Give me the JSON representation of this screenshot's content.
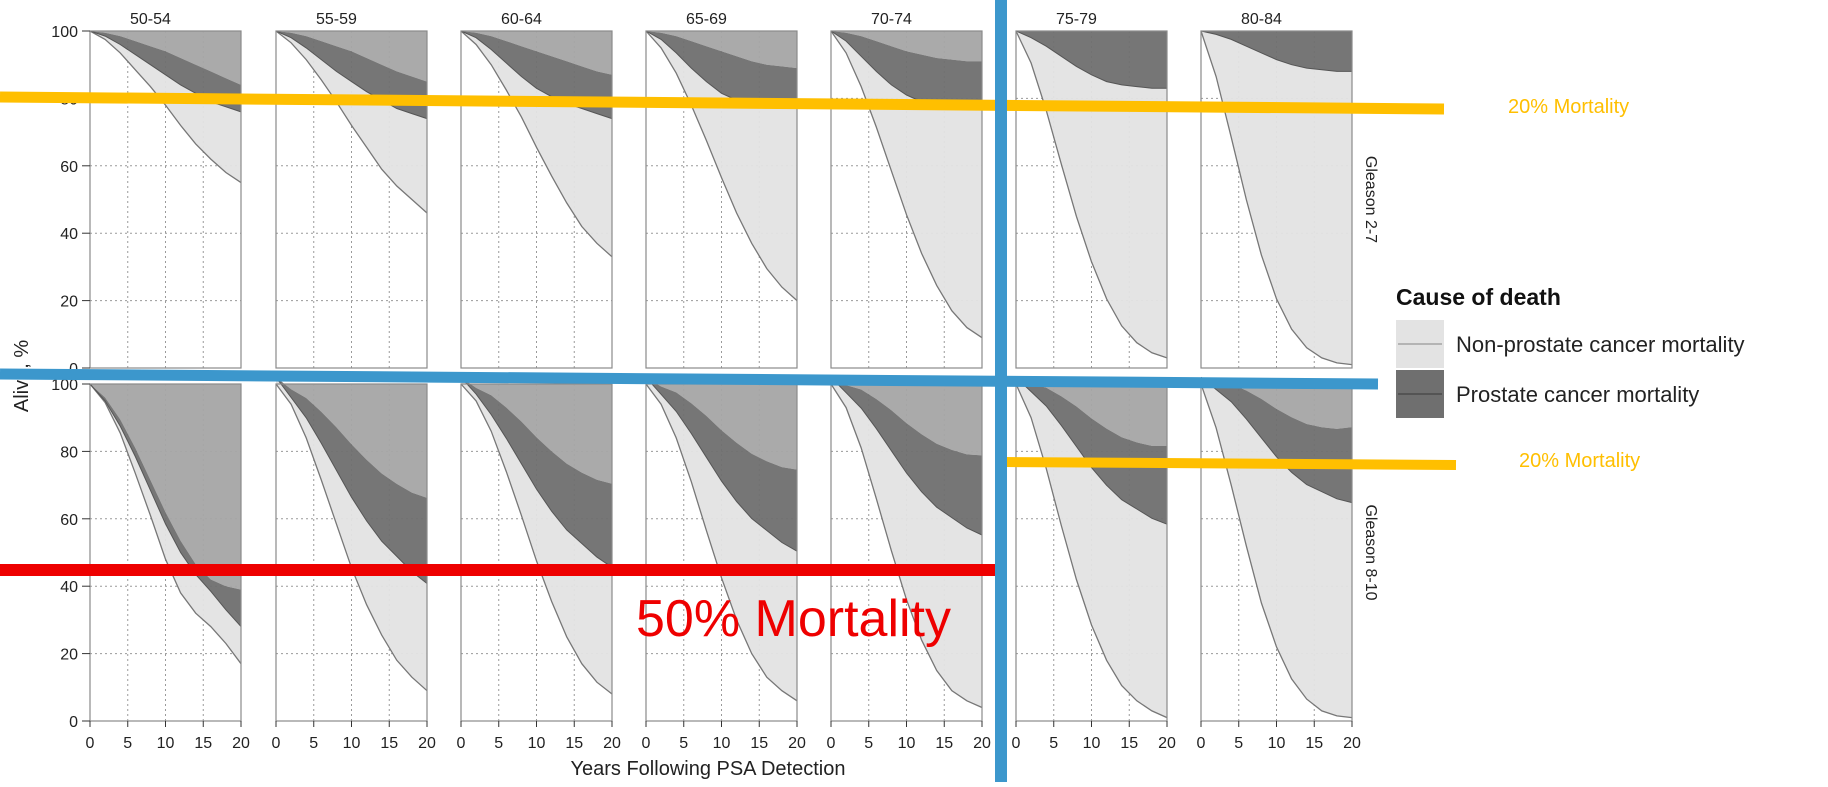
{
  "chart_data": {
    "type": "area",
    "xlabel": "Years Following PSA Detection",
    "ylabel": "Alive, %",
    "x": [
      0,
      2,
      4,
      6,
      8,
      10,
      12,
      14,
      16,
      18,
      20
    ],
    "xticks": [
      0,
      5,
      10,
      15,
      20
    ],
    "xlim": [
      0,
      20
    ],
    "ylim": [
      0,
      100
    ],
    "yticks": [
      0,
      20,
      40,
      60,
      80,
      100
    ],
    "grid": true,
    "stacked": true,
    "column_labels": [
      "50-54",
      "55-59",
      "60-64",
      "65-69",
      "70-74",
      "75-79",
      "80-84"
    ],
    "row_labels": [
      "Gleason 2-7",
      "Gleason 8-10"
    ],
    "colors": {
      "non_prostate": "#e3e3e3",
      "prostate": "#6f6f6f",
      "other": "#a5a5a5",
      "panel_border": "#8a8a8a",
      "highlight_blue": "#3c97cc",
      "highlight_yellow": "#ffbf00",
      "highlight_red": "#ee0000"
    },
    "legend": {
      "title": "Cause of death",
      "position": "right",
      "entries": [
        {
          "name": "Non-prostate cancer mortality",
          "key": "non_prostate"
        },
        {
          "name": "Prostate cancer mortality",
          "key": "prostate"
        }
      ]
    },
    "annotations": [
      {
        "text": "20% Mortality",
        "color": "#ffbf00"
      },
      {
        "text": "20% Mortality",
        "color": "#ffbf00"
      },
      {
        "text": "50% Mortality",
        "color": "#ee0000"
      }
    ],
    "panels": [
      {
        "row": "Gleason 2-7",
        "col": "50-54",
        "alive": [
          100,
          97.5,
          93.5,
          88.5,
          83.5,
          78,
          72,
          66.5,
          62,
          58,
          55
        ],
        "without_prostate_deaths": [
          100,
          98.5,
          96,
          93,
          90,
          87,
          84,
          81.5,
          79,
          77.5,
          76
        ],
        "without_any_cancer_deaths": [
          100,
          99.5,
          98.5,
          97,
          95.5,
          94,
          92,
          90,
          88,
          86,
          84
        ]
      },
      {
        "row": "Gleason 2-7",
        "col": "55-59",
        "alive": [
          100,
          96.5,
          91.5,
          85.5,
          79,
          72,
          65.5,
          59,
          54,
          50,
          46
        ],
        "without_prostate_deaths": [
          100,
          98,
          95,
          91.5,
          88,
          85,
          82,
          79.5,
          77,
          75.5,
          74
        ],
        "without_any_cancer_deaths": [
          100,
          99.5,
          98.5,
          97,
          95.5,
          94,
          92,
          90,
          88,
          86.5,
          85
        ]
      },
      {
        "row": "Gleason 2-7",
        "col": "60-64",
        "alive": [
          100,
          96,
          90,
          82.5,
          74.5,
          65.5,
          57,
          49,
          42,
          37,
          33
        ],
        "without_prostate_deaths": [
          100,
          98,
          94.5,
          90.5,
          86.5,
          83,
          80.5,
          78.5,
          77,
          75.5,
          74
        ],
        "without_any_cancer_deaths": [
          100,
          99.5,
          98.5,
          97,
          95.5,
          94,
          92.5,
          91,
          89.5,
          88,
          87
        ]
      },
      {
        "row": "Gleason 2-7",
        "col": "65-69",
        "alive": [
          100,
          95,
          87.5,
          78,
          67.5,
          56.5,
          46,
          37,
          29.5,
          24,
          20
        ],
        "without_prostate_deaths": [
          100,
          97.5,
          93.5,
          89,
          85,
          81.5,
          79.5,
          78,
          77.5,
          77,
          77
        ],
        "without_any_cancer_deaths": [
          100,
          99.5,
          98.5,
          97,
          95.5,
          94,
          92.5,
          91,
          90,
          89.5,
          89
        ]
      },
      {
        "row": "Gleason 2-7",
        "col": "70-74",
        "alive": [
          100,
          93.5,
          83.5,
          71.5,
          58.5,
          45.5,
          34,
          24.5,
          17,
          12,
          9
        ],
        "without_prostate_deaths": [
          100,
          97,
          92.5,
          88,
          84,
          81,
          79,
          78,
          77.5,
          77,
          77
        ],
        "without_any_cancer_deaths": [
          100,
          99.5,
          98.5,
          97,
          95.5,
          94,
          93,
          92,
          91.5,
          91,
          91
        ]
      },
      {
        "row": "Gleason 2-7",
        "col": "75-79",
        "alive": [
          100,
          90.5,
          76.5,
          60.5,
          45,
          31.5,
          20.5,
          12.5,
          7.5,
          4.5,
          3
        ],
        "without_prostate_deaths": [
          100,
          98,
          95.5,
          92.5,
          89.5,
          87,
          85,
          84,
          83.5,
          83,
          83
        ]
      },
      {
        "row": "Gleason 2-7",
        "col": "80-84",
        "alive": [
          100,
          86.5,
          68.5,
          50,
          33.5,
          20.5,
          11.5,
          6,
          3,
          1.5,
          1
        ],
        "without_prostate_deaths": [
          100,
          99,
          97.5,
          95.5,
          93.5,
          91.5,
          90,
          89,
          88.5,
          88,
          88
        ]
      },
      {
        "row": "Gleason 8-10",
        "col": "50-54",
        "alive": [
          100,
          94.5,
          85.5,
          73.5,
          61,
          48,
          38,
          32,
          28,
          23,
          17
        ],
        "without_prostate_deaths": [
          100,
          95,
          87.5,
          78.5,
          68.5,
          58.5,
          50,
          43.5,
          38.5,
          33,
          28
        ],
        "without_any_cancer_deaths": [
          100,
          96,
          89.5,
          81,
          71.5,
          62,
          53.5,
          46.5,
          42,
          40,
          39
        ]
      },
      {
        "row": "Gleason 8-10",
        "col": "55-59",
        "alive": [
          100,
          94,
          84,
          71.5,
          58.5,
          45.5,
          34.5,
          25.5,
          18,
          13,
          9
        ]
      },
      {
        "row": "Gleason 8-10",
        "col": "60-64",
        "alive": [
          100,
          95,
          86,
          74,
          61,
          47.5,
          35.5,
          25,
          17,
          11.5,
          8
        ]
      },
      {
        "row": "Gleason 8-10",
        "col": "65-69",
        "alive": [
          100,
          94,
          84,
          71,
          56.5,
          42.5,
          30,
          20,
          13,
          9,
          6
        ]
      },
      {
        "row": "Gleason 8-10",
        "col": "70-74",
        "alive": [
          100,
          93,
          81,
          66,
          50.5,
          36,
          24,
          15,
          9,
          6,
          4
        ]
      },
      {
        "row": "Gleason 8-10",
        "col": "75-79",
        "alive": [
          100,
          90,
          75,
          58,
          42,
          28.5,
          18,
          10.5,
          6,
          3,
          1
        ]
      },
      {
        "row": "Gleason 8-10",
        "col": "80-84",
        "alive": [
          100,
          87,
          70,
          52,
          35,
          22,
          12.5,
          6.5,
          3,
          1.5,
          1
        ]
      }
    ]
  }
}
